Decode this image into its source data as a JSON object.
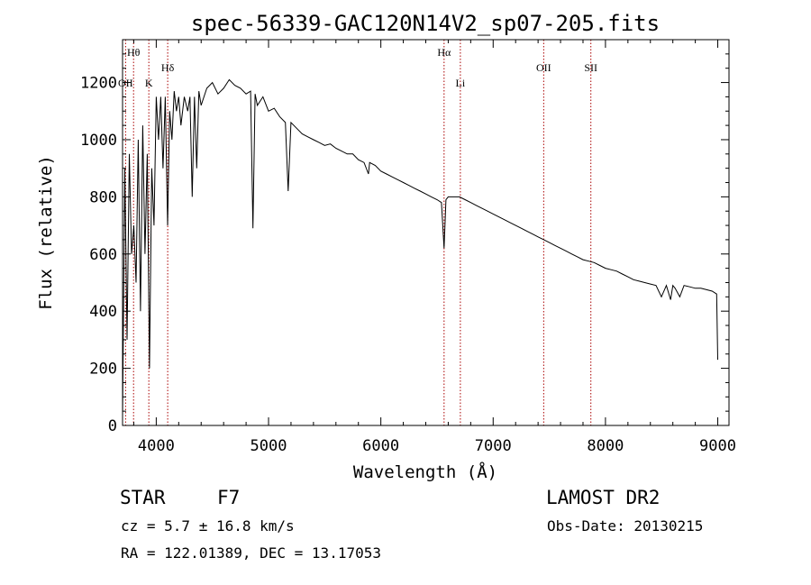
{
  "chart_data": {
    "type": "line",
    "title": "spec-56339-GAC120N14V2_sp07-205.fits",
    "xlabel": "Wavelength (Å)",
    "ylabel": "Flux (relative)",
    "xlim": [
      3700,
      9100
    ],
    "ylim": [
      0,
      1350
    ],
    "xticks": [
      4000,
      5000,
      6000,
      7000,
      8000,
      9000
    ],
    "yticks": [
      0,
      200,
      400,
      600,
      800,
      1000,
      1200
    ],
    "grid": false,
    "line_color": "#000000",
    "marker_color": "#aa0000",
    "lines": [
      {
        "label": "OII",
        "x": 3727,
        "tier": "low"
      },
      {
        "label": "Hθ",
        "x": 3798,
        "tier": "top"
      },
      {
        "label": "K",
        "x": 3934,
        "tier": "low"
      },
      {
        "label": "Hδ",
        "x": 4102,
        "tier": "mid"
      },
      {
        "label": "Hα",
        "x": 6563,
        "tier": "top"
      },
      {
        "label": "Li",
        "x": 6708,
        "tier": "low"
      },
      {
        "label": "OII",
        "x": 7450,
        "tier": "mid"
      },
      {
        "label": "SII",
        "x": 7870,
        "tier": "mid"
      }
    ],
    "series": [
      {
        "x": [
          3700,
          3720,
          3740,
          3760,
          3780,
          3800,
          3820,
          3840,
          3860,
          3880,
          3900,
          3920,
          3940,
          3960,
          3980,
          4000,
          4020,
          4040,
          4060,
          4080,
          4101,
          4120,
          4140,
          4160,
          4180,
          4200,
          4220,
          4250,
          4280,
          4300,
          4320,
          4340,
          4360,
          4380,
          4400,
          4450,
          4500,
          4550,
          4600,
          4650,
          4700,
          4750,
          4800,
          4840,
          4861,
          4880,
          4900,
          4950,
          5000,
          5050,
          5100,
          5150,
          5175,
          5200,
          5250,
          5300,
          5350,
          5400,
          5450,
          5500,
          5550,
          5600,
          5650,
          5700,
          5750,
          5800,
          5850,
          5890,
          5900,
          5950,
          6000,
          6050,
          6100,
          6150,
          6200,
          6250,
          6300,
          6350,
          6400,
          6450,
          6500,
          6540,
          6563,
          6580,
          6600,
          6650,
          6700,
          6750,
          6800,
          6850,
          6900,
          6950,
          7000,
          7050,
          7100,
          7150,
          7200,
          7250,
          7300,
          7350,
          7400,
          7450,
          7500,
          7550,
          7600,
          7650,
          7700,
          7750,
          7800,
          7850,
          7900,
          7950,
          8000,
          8050,
          8100,
          8150,
          8200,
          8250,
          8300,
          8350,
          8400,
          8450,
          8498,
          8542,
          8580,
          8600,
          8620,
          8662,
          8700,
          8750,
          8800,
          8850,
          8900,
          8950,
          8990,
          9000
        ],
        "values": [
          30,
          900,
          300,
          950,
          600,
          700,
          500,
          1000,
          400,
          1050,
          600,
          950,
          200,
          900,
          700,
          1150,
          1000,
          1150,
          900,
          1150,
          700,
          1100,
          1000,
          1170,
          1100,
          1150,
          1050,
          1150,
          1100,
          1150,
          800,
          1150,
          900,
          1170,
          1120,
          1180,
          1200,
          1160,
          1180,
          1210,
          1190,
          1180,
          1160,
          1170,
          690,
          1160,
          1120,
          1150,
          1100,
          1110,
          1080,
          1060,
          820,
          1060,
          1040,
          1020,
          1010,
          1000,
          990,
          980,
          985,
          970,
          960,
          950,
          950,
          930,
          920,
          880,
          920,
          910,
          890,
          880,
          870,
          860,
          850,
          840,
          830,
          820,
          810,
          800,
          790,
          780,
          620,
          790,
          800,
          800,
          800,
          790,
          780,
          770,
          760,
          750,
          740,
          730,
          720,
          710,
          700,
          690,
          680,
          670,
          660,
          650,
          640,
          630,
          620,
          610,
          600,
          590,
          580,
          575,
          570,
          560,
          550,
          545,
          540,
          530,
          520,
          510,
          505,
          500,
          495,
          490,
          450,
          490,
          440,
          490,
          480,
          450,
          490,
          485,
          480,
          480,
          475,
          470,
          460,
          230
        ]
      }
    ]
  },
  "caption": {
    "object_type": "STAR",
    "spectral_class": "F7",
    "survey": "LAMOST DR2",
    "redshift": "cz = 5.7 ± 16.8 km/s",
    "obs_date": "Obs-Date: 20130215",
    "coords": "RA = 122.01389, DEC =  13.17053"
  }
}
